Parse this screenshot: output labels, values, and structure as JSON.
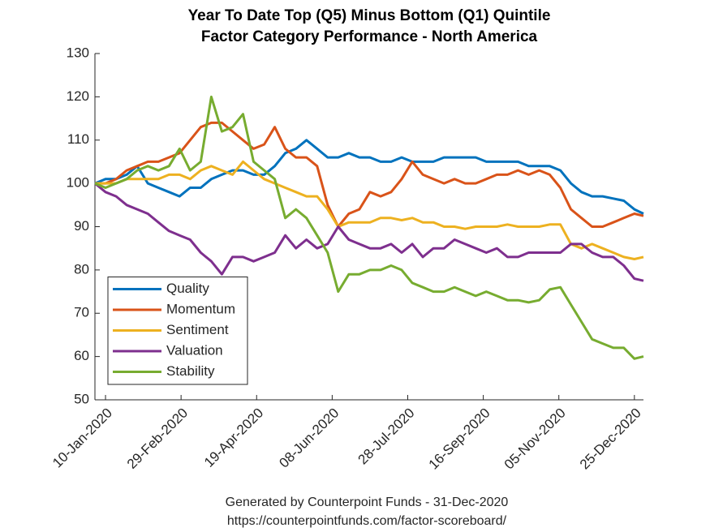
{
  "chart_data": {
    "type": "line",
    "title": [
      "Year To Date Top (Q5) Minus Bottom (Q1) Quintile",
      "Factor Category Performance - North America"
    ],
    "footer": [
      "Generated by Counterpoint Funds - 31-Dec-2020",
      "https://counterpointfunds.com/factor-scoreboard/"
    ],
    "x": [
      "2020-01-03",
      "2020-01-10",
      "2020-01-17",
      "2020-01-24",
      "2020-01-31",
      "2020-02-07",
      "2020-02-14",
      "2020-02-21",
      "2020-02-28",
      "2020-03-06",
      "2020-03-13",
      "2020-03-20",
      "2020-03-27",
      "2020-04-03",
      "2020-04-10",
      "2020-04-17",
      "2020-04-24",
      "2020-05-01",
      "2020-05-08",
      "2020-05-15",
      "2020-05-22",
      "2020-05-29",
      "2020-06-05",
      "2020-06-12",
      "2020-06-19",
      "2020-06-26",
      "2020-07-03",
      "2020-07-10",
      "2020-07-17",
      "2020-07-24",
      "2020-07-31",
      "2020-08-07",
      "2020-08-14",
      "2020-08-21",
      "2020-08-28",
      "2020-09-04",
      "2020-09-11",
      "2020-09-18",
      "2020-09-25",
      "2020-10-02",
      "2020-10-09",
      "2020-10-16",
      "2020-10-23",
      "2020-10-30",
      "2020-11-06",
      "2020-11-13",
      "2020-11-20",
      "2020-11-27",
      "2020-12-04",
      "2020-12-11",
      "2020-12-18",
      "2020-12-25",
      "2020-12-31"
    ],
    "series": [
      {
        "name": "Quality",
        "color": "#0072bd",
        "values": [
          100,
          101,
          101,
          102,
          104,
          100,
          99,
          98,
          97,
          99,
          99,
          101,
          102,
          103,
          103,
          102,
          102,
          104,
          107,
          108,
          110,
          108,
          106,
          106,
          107,
          106,
          106,
          105,
          105,
          106,
          105,
          105,
          105,
          106,
          106,
          106,
          106,
          105,
          105,
          105,
          105,
          104,
          104,
          104,
          103,
          100,
          98,
          97,
          97,
          96.5,
          96,
          94,
          93
        ]
      },
      {
        "name": "Momentum",
        "color": "#d95319",
        "values": [
          100,
          100,
          101,
          103,
          104,
          105,
          105,
          106,
          107,
          110,
          113,
          114,
          114,
          112,
          110,
          108,
          109,
          113,
          108,
          106,
          106,
          104,
          95,
          90,
          93,
          94,
          98,
          97,
          98,
          101,
          105,
          102,
          101,
          100,
          101,
          100,
          100,
          101,
          102,
          102,
          103,
          102,
          103,
          102,
          99,
          94,
          92,
          90,
          90,
          91,
          92,
          93,
          92.5
        ]
      },
      {
        "name": "Sentiment",
        "color": "#edb120",
        "values": [
          100,
          100,
          100,
          101,
          101,
          101,
          101,
          102,
          102,
          101,
          103,
          104,
          103,
          102,
          105,
          103,
          101,
          100,
          99,
          98,
          97,
          97,
          94,
          90,
          91,
          91,
          91,
          92,
          92,
          91.5,
          92,
          91,
          91,
          90,
          90,
          89.5,
          90,
          90,
          90,
          90.5,
          90,
          90,
          90,
          90.5,
          90.5,
          86,
          85,
          86,
          85,
          84,
          83,
          82.5,
          83
        ]
      },
      {
        "name": "Valuation",
        "color": "#7e2f8e",
        "values": [
          100,
          98,
          97,
          95,
          94,
          93,
          91,
          89,
          88,
          87,
          84,
          82,
          79,
          83,
          83,
          82,
          83,
          84,
          88,
          85,
          87,
          85,
          86,
          90,
          87,
          86,
          85,
          85,
          86,
          84,
          86,
          83,
          85,
          85,
          87,
          86,
          85,
          84,
          85,
          83,
          83,
          84,
          84,
          84,
          84,
          86,
          86,
          84,
          83,
          83,
          81,
          78,
          77.5
        ]
      },
      {
        "name": "Stability",
        "color": "#77ac30",
        "values": [
          100,
          99,
          100,
          101,
          103,
          104,
          103,
          104,
          108,
          103,
          105,
          120,
          112,
          113,
          116,
          105,
          103,
          101,
          92,
          94,
          92,
          88,
          84,
          75,
          79,
          79,
          80,
          80,
          81,
          80,
          77,
          76,
          75,
          75,
          76,
          75,
          74,
          75,
          74,
          73,
          73,
          72.5,
          73,
          75.5,
          76,
          72,
          68,
          64,
          63,
          62,
          62,
          59.5,
          60
        ]
      }
    ],
    "xlim": [
      "2020-01-03",
      "2020-12-31"
    ],
    "xticks": [
      {
        "value": "2020-01-10",
        "label": "10-Jan-2020"
      },
      {
        "value": "2020-02-29",
        "label": "29-Feb-2020"
      },
      {
        "value": "2020-04-19",
        "label": "19-Apr-2020"
      },
      {
        "value": "2020-06-08",
        "label": "08-Jun-2020"
      },
      {
        "value": "2020-07-28",
        "label": "28-Jul-2020"
      },
      {
        "value": "2020-09-16",
        "label": "16-Sep-2020"
      },
      {
        "value": "2020-11-05",
        "label": "05-Nov-2020"
      },
      {
        "value": "2020-12-25",
        "label": "25-Dec-2020"
      }
    ],
    "ylim": [
      50,
      130
    ],
    "yticks": [
      50,
      60,
      70,
      80,
      90,
      100,
      110,
      120,
      130
    ],
    "grid": false,
    "legend": "southwest"
  }
}
